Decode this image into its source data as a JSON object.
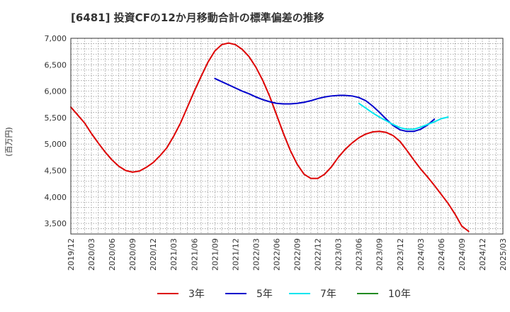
{
  "chart_data": {
    "type": "line",
    "title": "[6481]  投資CFの12か月移動合計の標準偏差の推移",
    "ylabel": "(百万円)",
    "xlabel": "",
    "ylim": [
      3300,
      7000
    ],
    "yticks": [
      3500,
      4000,
      4500,
      5000,
      5500,
      6000,
      6500,
      7000
    ],
    "ytick_labels": [
      "3,500",
      "4,000",
      "4,500",
      "5,000",
      "5,500",
      "6,000",
      "6,500",
      "7,000"
    ],
    "x_categories": [
      "2019/12",
      "2020/03",
      "2020/06",
      "2020/09",
      "2020/12",
      "2021/03",
      "2021/06",
      "2021/09",
      "2021/12",
      "2022/03",
      "2022/06",
      "2022/09",
      "2022/12",
      "2023/03",
      "2023/06",
      "2023/09",
      "2023/12",
      "2024/03",
      "2024/06",
      "2024/09",
      "2024/12",
      "2025/03"
    ],
    "grid": true,
    "legend_position": "bottom",
    "series": [
      {
        "name": "3年",
        "color": "#dd0000",
        "points": [
          [
            "2019/12",
            5700
          ],
          [
            "2020/01",
            5550
          ],
          [
            "2020/02",
            5400
          ],
          [
            "2020/03",
            5200
          ],
          [
            "2020/04",
            5020
          ],
          [
            "2020/05",
            4850
          ],
          [
            "2020/06",
            4700
          ],
          [
            "2020/07",
            4580
          ],
          [
            "2020/08",
            4500
          ],
          [
            "2020/09",
            4470
          ],
          [
            "2020/10",
            4490
          ],
          [
            "2020/11",
            4560
          ],
          [
            "2020/12",
            4650
          ],
          [
            "2021/01",
            4780
          ],
          [
            "2021/02",
            4930
          ],
          [
            "2021/03",
            5150
          ],
          [
            "2021/04",
            5400
          ],
          [
            "2021/05",
            5700
          ],
          [
            "2021/06",
            6000
          ],
          [
            "2021/07",
            6280
          ],
          [
            "2021/08",
            6550
          ],
          [
            "2021/09",
            6760
          ],
          [
            "2021/10",
            6880
          ],
          [
            "2021/11",
            6910
          ],
          [
            "2021/12",
            6880
          ],
          [
            "2022/01",
            6790
          ],
          [
            "2022/02",
            6650
          ],
          [
            "2022/03",
            6450
          ],
          [
            "2022/04",
            6200
          ],
          [
            "2022/05",
            5900
          ],
          [
            "2022/06",
            5550
          ],
          [
            "2022/07",
            5200
          ],
          [
            "2022/08",
            4880
          ],
          [
            "2022/09",
            4620
          ],
          [
            "2022/10",
            4430
          ],
          [
            "2022/11",
            4350
          ],
          [
            "2022/12",
            4350
          ],
          [
            "2023/01",
            4430
          ],
          [
            "2023/02",
            4570
          ],
          [
            "2023/03",
            4750
          ],
          [
            "2023/04",
            4900
          ],
          [
            "2023/05",
            5020
          ],
          [
            "2023/06",
            5120
          ],
          [
            "2023/07",
            5190
          ],
          [
            "2023/08",
            5230
          ],
          [
            "2023/09",
            5240
          ],
          [
            "2023/10",
            5220
          ],
          [
            "2023/11",
            5160
          ],
          [
            "2023/12",
            5050
          ],
          [
            "2024/01",
            4880
          ],
          [
            "2024/02",
            4700
          ],
          [
            "2024/03",
            4530
          ],
          [
            "2024/04",
            4380
          ],
          [
            "2024/05",
            4220
          ],
          [
            "2024/06",
            4050
          ],
          [
            "2024/07",
            3880
          ],
          [
            "2024/08",
            3680
          ],
          [
            "2024/09",
            3450
          ],
          [
            "2024/10",
            3350
          ]
        ]
      },
      {
        "name": "5年",
        "color": "#0000cc",
        "points": [
          [
            "2021/09",
            6240
          ],
          [
            "2021/10",
            6180
          ],
          [
            "2021/11",
            6120
          ],
          [
            "2021/12",
            6060
          ],
          [
            "2022/01",
            6000
          ],
          [
            "2022/02",
            5950
          ],
          [
            "2022/03",
            5890
          ],
          [
            "2022/04",
            5840
          ],
          [
            "2022/05",
            5800
          ],
          [
            "2022/06",
            5770
          ],
          [
            "2022/07",
            5760
          ],
          [
            "2022/08",
            5760
          ],
          [
            "2022/09",
            5770
          ],
          [
            "2022/10",
            5790
          ],
          [
            "2022/11",
            5820
          ],
          [
            "2022/12",
            5860
          ],
          [
            "2023/01",
            5890
          ],
          [
            "2023/02",
            5910
          ],
          [
            "2023/03",
            5920
          ],
          [
            "2023/04",
            5920
          ],
          [
            "2023/05",
            5910
          ],
          [
            "2023/06",
            5880
          ],
          [
            "2023/07",
            5820
          ],
          [
            "2023/08",
            5720
          ],
          [
            "2023/09",
            5600
          ],
          [
            "2023/10",
            5470
          ],
          [
            "2023/11",
            5350
          ],
          [
            "2023/12",
            5270
          ],
          [
            "2024/01",
            5240
          ],
          [
            "2024/02",
            5240
          ],
          [
            "2024/03",
            5280
          ],
          [
            "2024/04",
            5360
          ],
          [
            "2024/05",
            5470
          ]
        ]
      },
      {
        "name": "7年",
        "color": "#00e5ee",
        "points": [
          [
            "2023/06",
            5770
          ],
          [
            "2023/07",
            5680
          ],
          [
            "2023/08",
            5590
          ],
          [
            "2023/09",
            5510
          ],
          [
            "2023/10",
            5440
          ],
          [
            "2023/11",
            5370
          ],
          [
            "2023/12",
            5310
          ],
          [
            "2024/01",
            5280
          ],
          [
            "2024/02",
            5280
          ],
          [
            "2024/03",
            5320
          ],
          [
            "2024/04",
            5370
          ],
          [
            "2024/05",
            5420
          ],
          [
            "2024/06",
            5480
          ],
          [
            "2024/07",
            5510
          ]
        ]
      },
      {
        "name": "10年",
        "color": "#228b22",
        "points": []
      }
    ]
  }
}
